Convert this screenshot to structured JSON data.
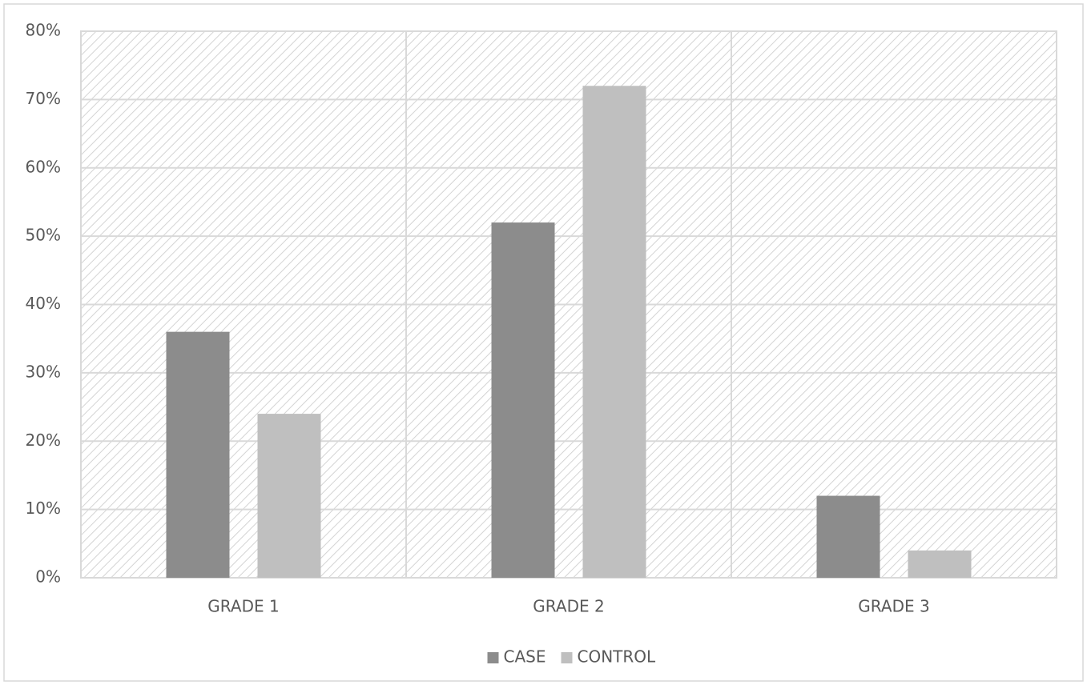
{
  "chart_data": {
    "type": "bar",
    "categories": [
      "GRADE 1",
      "GRADE 2",
      "GRADE 3"
    ],
    "series": [
      {
        "name": "CASE",
        "color": "#8c8c8c",
        "values": [
          36,
          52,
          12
        ]
      },
      {
        "name": "CONTROL",
        "color": "#bfbfbf",
        "values": [
          24,
          72,
          4
        ]
      }
    ],
    "ylim": [
      0,
      80
    ],
    "yticks": [
      {
        "value": 0,
        "label": "0%"
      },
      {
        "value": 10,
        "label": "10%"
      },
      {
        "value": 20,
        "label": "20%"
      },
      {
        "value": 30,
        "label": "30%"
      },
      {
        "value": 40,
        "label": "40%"
      },
      {
        "value": 50,
        "label": "50%"
      },
      {
        "value": 60,
        "label": "60%"
      },
      {
        "value": 70,
        "label": "70%"
      },
      {
        "value": 80,
        "label": "80%"
      }
    ],
    "grid": true,
    "legend": "bottom"
  }
}
